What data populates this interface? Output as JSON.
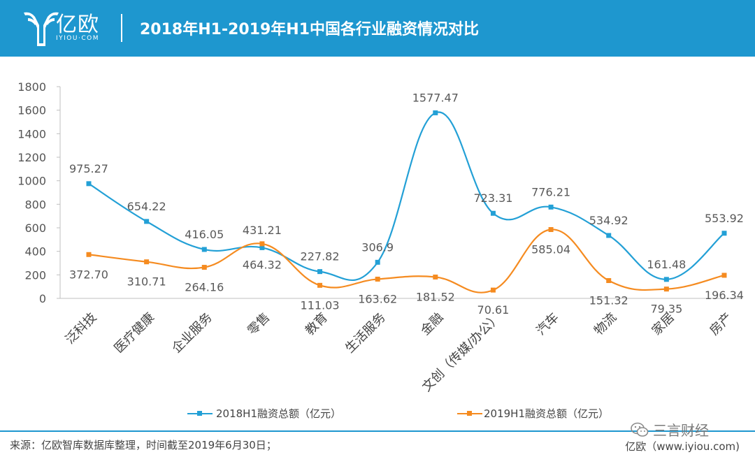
{
  "header": {
    "logo_text": "亿欧",
    "logo_sub": "IYIOU·COM",
    "title": "2018年H1-2019年H1中国各行业融资情况对比"
  },
  "colors": {
    "header_bg": "#1e97cf",
    "series_2018": "#23a0d6",
    "series_2019": "#f58b20",
    "axis": "#bfbfbf"
  },
  "chart_data": {
    "type": "line",
    "categories": [
      "泛科技",
      "医疗健康",
      "企业服务",
      "零售",
      "教育",
      "生活服务",
      "金融",
      "文创（传媒/办公）",
      "汽车",
      "物流",
      "家居",
      "房产"
    ],
    "series": [
      {
        "name": "2018H1融资总额（亿元）",
        "values": [
          975.27,
          654.22,
          416.05,
          431.21,
          227.82,
          306.9,
          1577.47,
          723.31,
          776.21,
          534.92,
          161.48,
          553.92
        ],
        "labels": [
          "975.27",
          "654.22",
          "416.05",
          "431.21",
          "227.82",
          "306.9",
          "1577.47",
          "723.31",
          "776.21",
          "534.92",
          "161.48",
          "553.92"
        ]
      },
      {
        "name": "2019H1融资总额（亿元）",
        "values": [
          372.7,
          310.71,
          264.16,
          464.32,
          111.03,
          163.62,
          181.52,
          70.61,
          585.04,
          151.32,
          79.35,
          196.34
        ],
        "labels": [
          "372.70",
          "310.71",
          "264.16",
          "464.32",
          "111.03",
          "163.62",
          "181.52",
          "70.61",
          "585.04",
          "151.32",
          "79.35",
          "196.34"
        ]
      }
    ],
    "ylim": [
      0,
      1800
    ],
    "yticks": [
      0,
      200,
      400,
      600,
      800,
      1000,
      1200,
      1400,
      1600,
      1800
    ],
    "grid": false,
    "legend_position": "bottom",
    "smooth": true
  },
  "footer": {
    "source": "来源：亿欧智库数据库整理，时间截至2019年6月30日；",
    "credit": "亿欧（www.iyiou.com)",
    "watermark": "三言财经"
  }
}
